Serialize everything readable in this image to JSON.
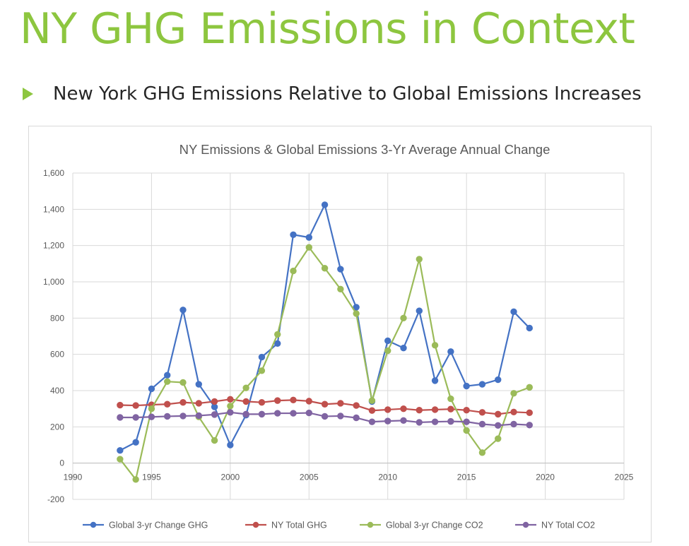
{
  "slide": {
    "title": "NY GHG Emissions in Context",
    "bullet": "New York GHG Emissions Relative to Global Emissions Increases"
  },
  "colors": {
    "accent": "#8dc63f",
    "series": [
      "#4472c4",
      "#c0504d",
      "#9bbb59",
      "#8064a2"
    ]
  },
  "chart_data": {
    "type": "line",
    "title": "NY Emissions & Global Emissions 3-Yr Average Annual Change",
    "xlabel": "",
    "ylabel": "",
    "xlim": [
      1990,
      2025
    ],
    "ylim": [
      -200,
      1600
    ],
    "xticks": [
      1990,
      1995,
      2000,
      2005,
      2010,
      2015,
      2020,
      2025
    ],
    "yticks": [
      -200,
      0,
      200,
      400,
      600,
      800,
      1000,
      1200,
      1400,
      1600
    ],
    "ytick_labels": [
      "-200",
      "0",
      "200",
      "400",
      "600",
      "800",
      "1,000",
      "1,200",
      "1,400",
      "1,600"
    ],
    "grid": true,
    "legend_position": "bottom",
    "x": [
      1993,
      1994,
      1995,
      1996,
      1997,
      1998,
      1999,
      2000,
      2001,
      2002,
      2003,
      2004,
      2005,
      2006,
      2007,
      2008,
      2009,
      2010,
      2011,
      2012,
      2013,
      2014,
      2015,
      2016,
      2017,
      2018,
      2019
    ],
    "series": [
      {
        "name": "Global 3-yr Change GHG",
        "values": [
          70,
          115,
          410,
          485,
          845,
          435,
          310,
          100,
          265,
          585,
          660,
          1260,
          1245,
          1425,
          1070,
          860,
          340,
          675,
          635,
          840,
          455,
          615,
          425,
          435,
          460,
          835,
          745
        ]
      },
      {
        "name": "NY Total GHG",
        "values": [
          320,
          318,
          322,
          325,
          335,
          330,
          340,
          352,
          340,
          335,
          345,
          348,
          342,
          325,
          330,
          318,
          290,
          295,
          300,
          292,
          295,
          298,
          292,
          280,
          270,
          282,
          278
        ]
      },
      {
        "name": "Global 3-yr Change CO2",
        "values": [
          22,
          -90,
          300,
          450,
          445,
          255,
          125,
          315,
          415,
          510,
          710,
          1060,
          1190,
          1075,
          960,
          825,
          345,
          620,
          800,
          1125,
          650,
          355,
          180,
          58,
          135,
          385,
          418
        ]
      },
      {
        "name": "NY Total CO2",
        "values": [
          252,
          252,
          255,
          258,
          260,
          262,
          268,
          280,
          270,
          270,
          275,
          275,
          277,
          258,
          260,
          250,
          228,
          232,
          235,
          225,
          228,
          230,
          228,
          215,
          208,
          215,
          210
        ]
      }
    ]
  }
}
